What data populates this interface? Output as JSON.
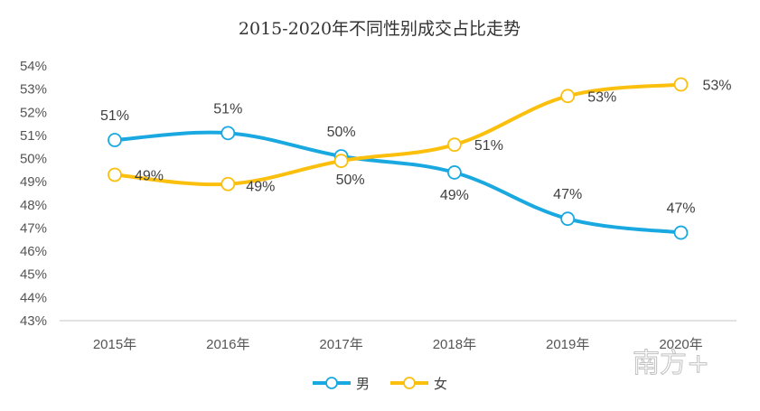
{
  "chart_data": {
    "type": "line",
    "title": "2015-2020年不同性别成交占比走势",
    "categories": [
      "2015年",
      "2016年",
      "2017年",
      "2018年",
      "2019年",
      "2020年"
    ],
    "ylim": [
      43,
      54
    ],
    "yticks": [
      "43%",
      "44%",
      "45%",
      "46%",
      "47%",
      "48%",
      "49%",
      "50%",
      "51%",
      "52%",
      "53%",
      "54%"
    ],
    "y_unit": "%",
    "grid": false,
    "legend_position": "bottom",
    "series": [
      {
        "name": "男",
        "color": "#1aa8e0",
        "values": [
          50.8,
          51.1,
          50.1,
          49.4,
          47.4,
          46.8
        ],
        "labels": [
          "51%",
          "51%",
          "50%",
          "49%",
          "47%",
          "47%"
        ]
      },
      {
        "name": "女",
        "color": "#fbbf0e",
        "values": [
          49.3,
          48.9,
          49.9,
          50.6,
          52.7,
          53.2
        ],
        "labels": [
          "49%",
          "49%",
          "50%",
          "51%",
          "53%",
          "53%"
        ]
      }
    ]
  },
  "watermark": "南方+"
}
